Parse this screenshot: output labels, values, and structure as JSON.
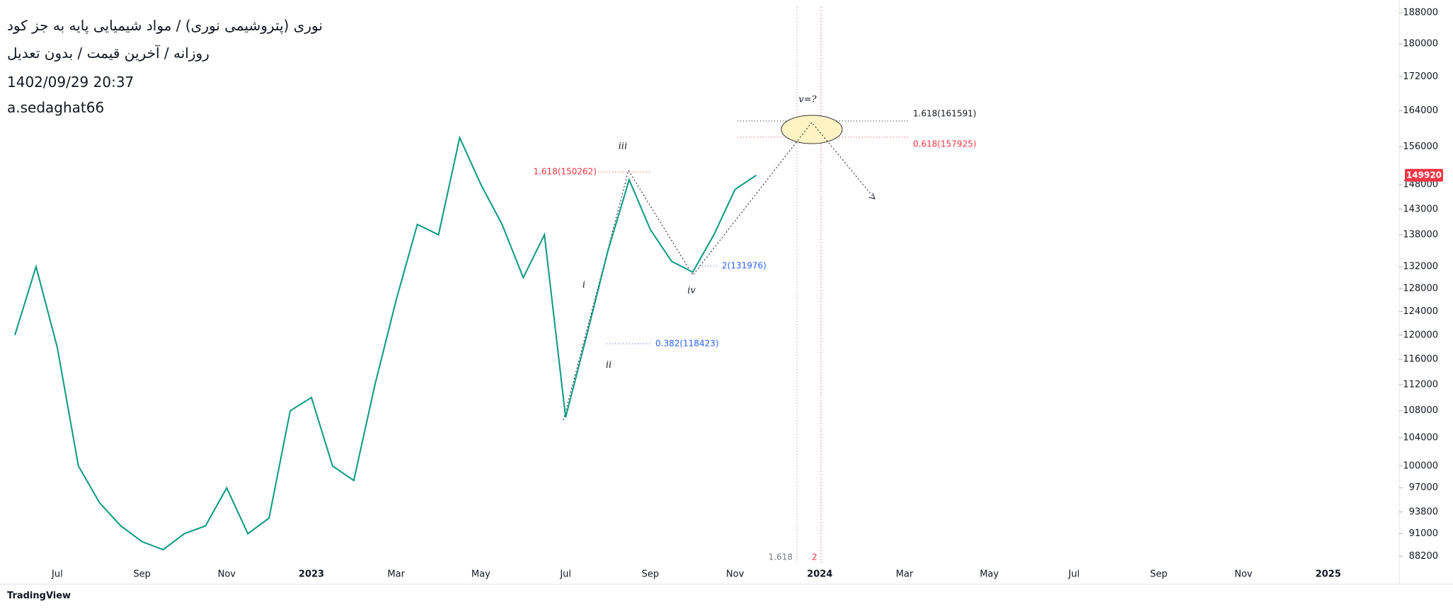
{
  "header": {
    "title": "نوری (پتروشیمی نوری) / مواد شیمیایی پایه به جز کود",
    "subtitle": "روزانه / آخرین قیمت / بدون تعدیل",
    "datetime": "1402/09/29 20:37",
    "author": "a.sedaghat66"
  },
  "chart_data": {
    "type": "line",
    "color": "#089981",
    "log_scale": true,
    "categories": [
      null,
      null,
      "Jul",
      null,
      null,
      null,
      "Sep",
      null,
      null,
      null,
      "Nov",
      null,
      null,
      null,
      "2023",
      null,
      null,
      null,
      "Mar",
      null,
      null,
      null,
      "May",
      null,
      null,
      null,
      "Jul",
      null,
      null,
      null,
      "Sep",
      null,
      null,
      null,
      "Nov",
      null,
      null,
      null,
      "2024",
      null,
      null,
      null,
      "Mar",
      null,
      null,
      null,
      "May",
      null,
      null,
      null,
      "Jul",
      null,
      null,
      null,
      "Sep",
      null,
      null,
      null,
      "Nov",
      null,
      null,
      null,
      "2025",
      null,
      null,
      null
    ],
    "values": [
      120000,
      132000,
      118000,
      100000,
      95000,
      92000,
      90000,
      89000,
      91000,
      92000,
      97000,
      91000,
      93000,
      108000,
      110000,
      100000,
      98000,
      112000,
      126000,
      140000,
      138000,
      158000,
      148000,
      140000,
      130000,
      138000,
      107000,
      120000,
      135000,
      149000,
      139000,
      133000,
      131000,
      138000,
      147000,
      149920,
      null,
      null,
      null,
      null,
      null,
      null,
      null,
      null,
      null,
      null,
      null,
      null,
      null,
      null,
      null,
      null,
      null,
      null,
      null,
      null,
      null,
      null,
      null,
      null,
      null,
      null,
      null,
      null,
      null,
      null
    ],
    "ylim": [
      87100,
      189500
    ],
    "yticks": [
      88200,
      91000,
      93800,
      97000,
      100000,
      104000,
      108000,
      112000,
      116000,
      120000,
      124000,
      128000,
      132000,
      138000,
      143000,
      148000,
      156000,
      164000,
      172000,
      180000,
      188000
    ],
    "annotations": [
      "iii",
      "i",
      "ii",
      "iv",
      "v=?",
      "1.618(150262)",
      "0.382(118423)",
      "2(131976)",
      "1.618(161591)",
      "0.618(157925)",
      "1.618",
      "2"
    ]
  },
  "footer": {
    "brand": "TradingView"
  }
}
